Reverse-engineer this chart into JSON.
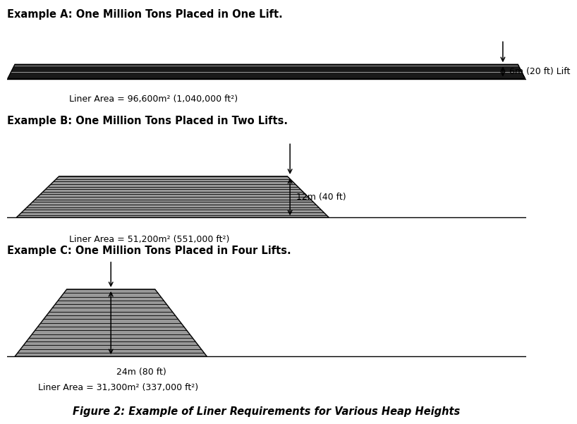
{
  "title_A": "Example A: One Million Tons Placed in One Lift.",
  "title_B": "Example B: One Million Tons Placed in Two Lifts.",
  "title_C": "Example C: One Million Tons Placed in Four Lifts.",
  "label_A": "Liner Area = 96,600m² (1,040,000 ft²)",
  "label_B": "Liner Area = 51,200m² (551,000 ft²)",
  "label_C": "Liner Area = 31,300m² (337,000 ft²)",
  "dim_A": "6m (20 ft) Lift",
  "dim_B": "12m (40 ft)",
  "dim_C": "24m (80 ft)",
  "fig_caption": "Figure 2: Example of Liner Requirements for Various Heap Heights",
  "background_color": "#ffffff",
  "hatch_fill": "#aaaaaa",
  "line_color": "#000000",
  "heap_A": {
    "xlb": 0.01,
    "xrb": 9.98,
    "xlt": 0.15,
    "xrt": 9.84,
    "yb": 0.0,
    "yt": 0.32,
    "n_lines": 18
  },
  "heap_B": {
    "xlb": 0.18,
    "xrb": 6.2,
    "xlt": 1.0,
    "xrt": 5.4,
    "yb": 0.0,
    "yt": 0.72,
    "n_lines": 16
  },
  "heap_C": {
    "xlb": 0.15,
    "xrb": 3.85,
    "xlt": 1.15,
    "xrt": 2.85,
    "yb": 0.0,
    "yt": 1.5,
    "n_lines": 18
  }
}
